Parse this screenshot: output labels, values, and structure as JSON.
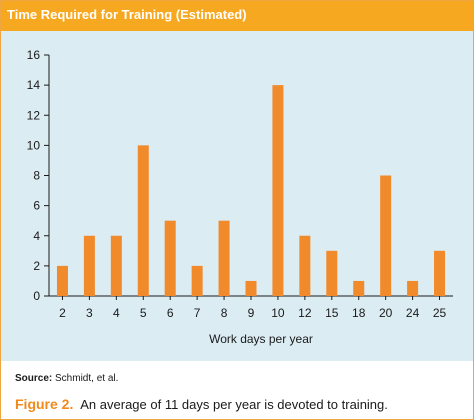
{
  "header": {
    "title": "Time Required for Training (Estimated)"
  },
  "chart_data": {
    "type": "bar",
    "categories": [
      "2",
      "3",
      "4",
      "5",
      "6",
      "7",
      "8",
      "9",
      "10",
      "12",
      "15",
      "18",
      "20",
      "24",
      "25"
    ],
    "values": [
      2,
      4,
      4,
      10,
      5,
      2,
      5,
      1,
      14,
      4,
      3,
      1,
      8,
      1,
      3
    ],
    "xlabel": "Work days per year",
    "ylabel": "",
    "ylim": [
      0,
      16
    ],
    "yticks": [
      0,
      2,
      4,
      6,
      8,
      10,
      12,
      14,
      16
    ],
    "grid": false,
    "bar_color": "#f08a2a",
    "background_color": "#dcecf3"
  },
  "footer": {
    "source_label": "Source:",
    "source_text": "Schmidt, et al.",
    "figure_label": "Figure 2.",
    "caption_text": "An average of 11 days per year is devoted to training."
  },
  "colors": {
    "accent": "#f6a821",
    "figure_label": "#f08a1c"
  }
}
